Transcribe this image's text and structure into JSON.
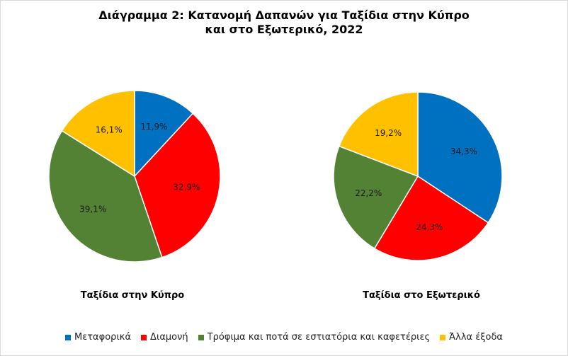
{
  "chart_data": {
    "type": "pie",
    "title_lines": [
      "Διάγραμμα  2: Κατανομή Δαπανών για Ταξίδια στην Κύπρο",
      "και στο Εξωτερικό, 2022"
    ],
    "categories": [
      "Μεταφορικά",
      "Διαμονή",
      "Τρόφιμα και ποτά σε εστιατόρια και καφετέριες",
      "Άλλα έξοδα"
    ],
    "colors": [
      "#0070c0",
      "#ff0000",
      "#548235",
      "#ffc000"
    ],
    "pies": [
      {
        "name": "Ταξίδια στην Κύπρο",
        "values": [
          11.9,
          32.9,
          39.1,
          16.1
        ],
        "labels": [
          "11,9%",
          "32,9%",
          "39,1%",
          "16,1%"
        ]
      },
      {
        "name": "Ταξίδια στο Εξωτερικό",
        "values": [
          34.3,
          24.3,
          22.2,
          19.2
        ],
        "labels": [
          "34,3%",
          "24,3%",
          "22,2%",
          "19,2%"
        ]
      }
    ],
    "legend_position": "bottom"
  }
}
